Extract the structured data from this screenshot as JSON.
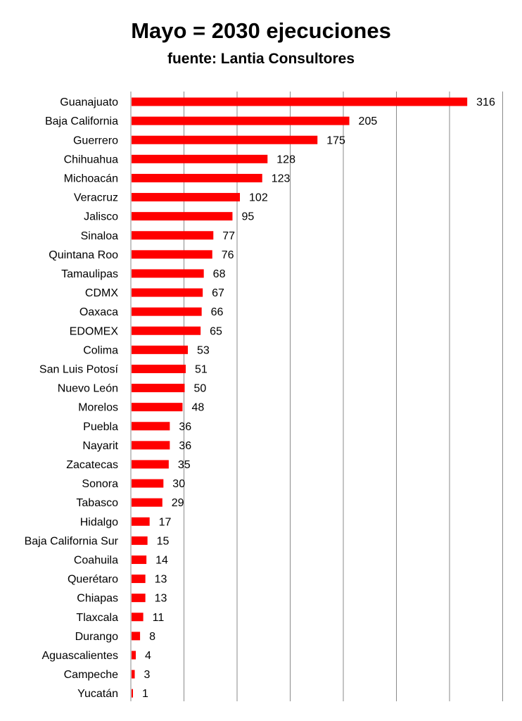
{
  "chart_data": {
    "type": "bar",
    "orientation": "horizontal",
    "title": "Mayo = 2030 ejecuciones",
    "subtitle": "fuente: Lantia Consultores",
    "bar_color": "#ff0000",
    "grid": true,
    "xlim": [
      0,
      350
    ],
    "grid_step": 50,
    "categories": [
      "Guanajuato",
      "Baja California",
      "Guerrero",
      "Chihuahua",
      "Michoacán",
      "Veracruz",
      "Jalisco",
      "Sinaloa",
      "Quintana Roo",
      "Tamaulipas",
      "CDMX",
      "Oaxaca",
      "EDOMEX",
      "Colima",
      "San Luis Potosí",
      "Nuevo León",
      "Morelos",
      "Puebla",
      "Nayarit",
      "Zacatecas",
      "Sonora",
      "Tabasco",
      "Hidalgo",
      "Baja California Sur",
      "Coahuila",
      "Querétaro",
      "Chiapas",
      "Tlaxcala",
      "Durango",
      "Aguascalientes",
      "Campeche",
      "Yucatán"
    ],
    "values": [
      316,
      205,
      175,
      128,
      123,
      102,
      95,
      77,
      76,
      68,
      67,
      66,
      65,
      53,
      51,
      50,
      48,
      36,
      36,
      35,
      30,
      29,
      17,
      15,
      14,
      13,
      13,
      11,
      8,
      4,
      3,
      1
    ]
  }
}
